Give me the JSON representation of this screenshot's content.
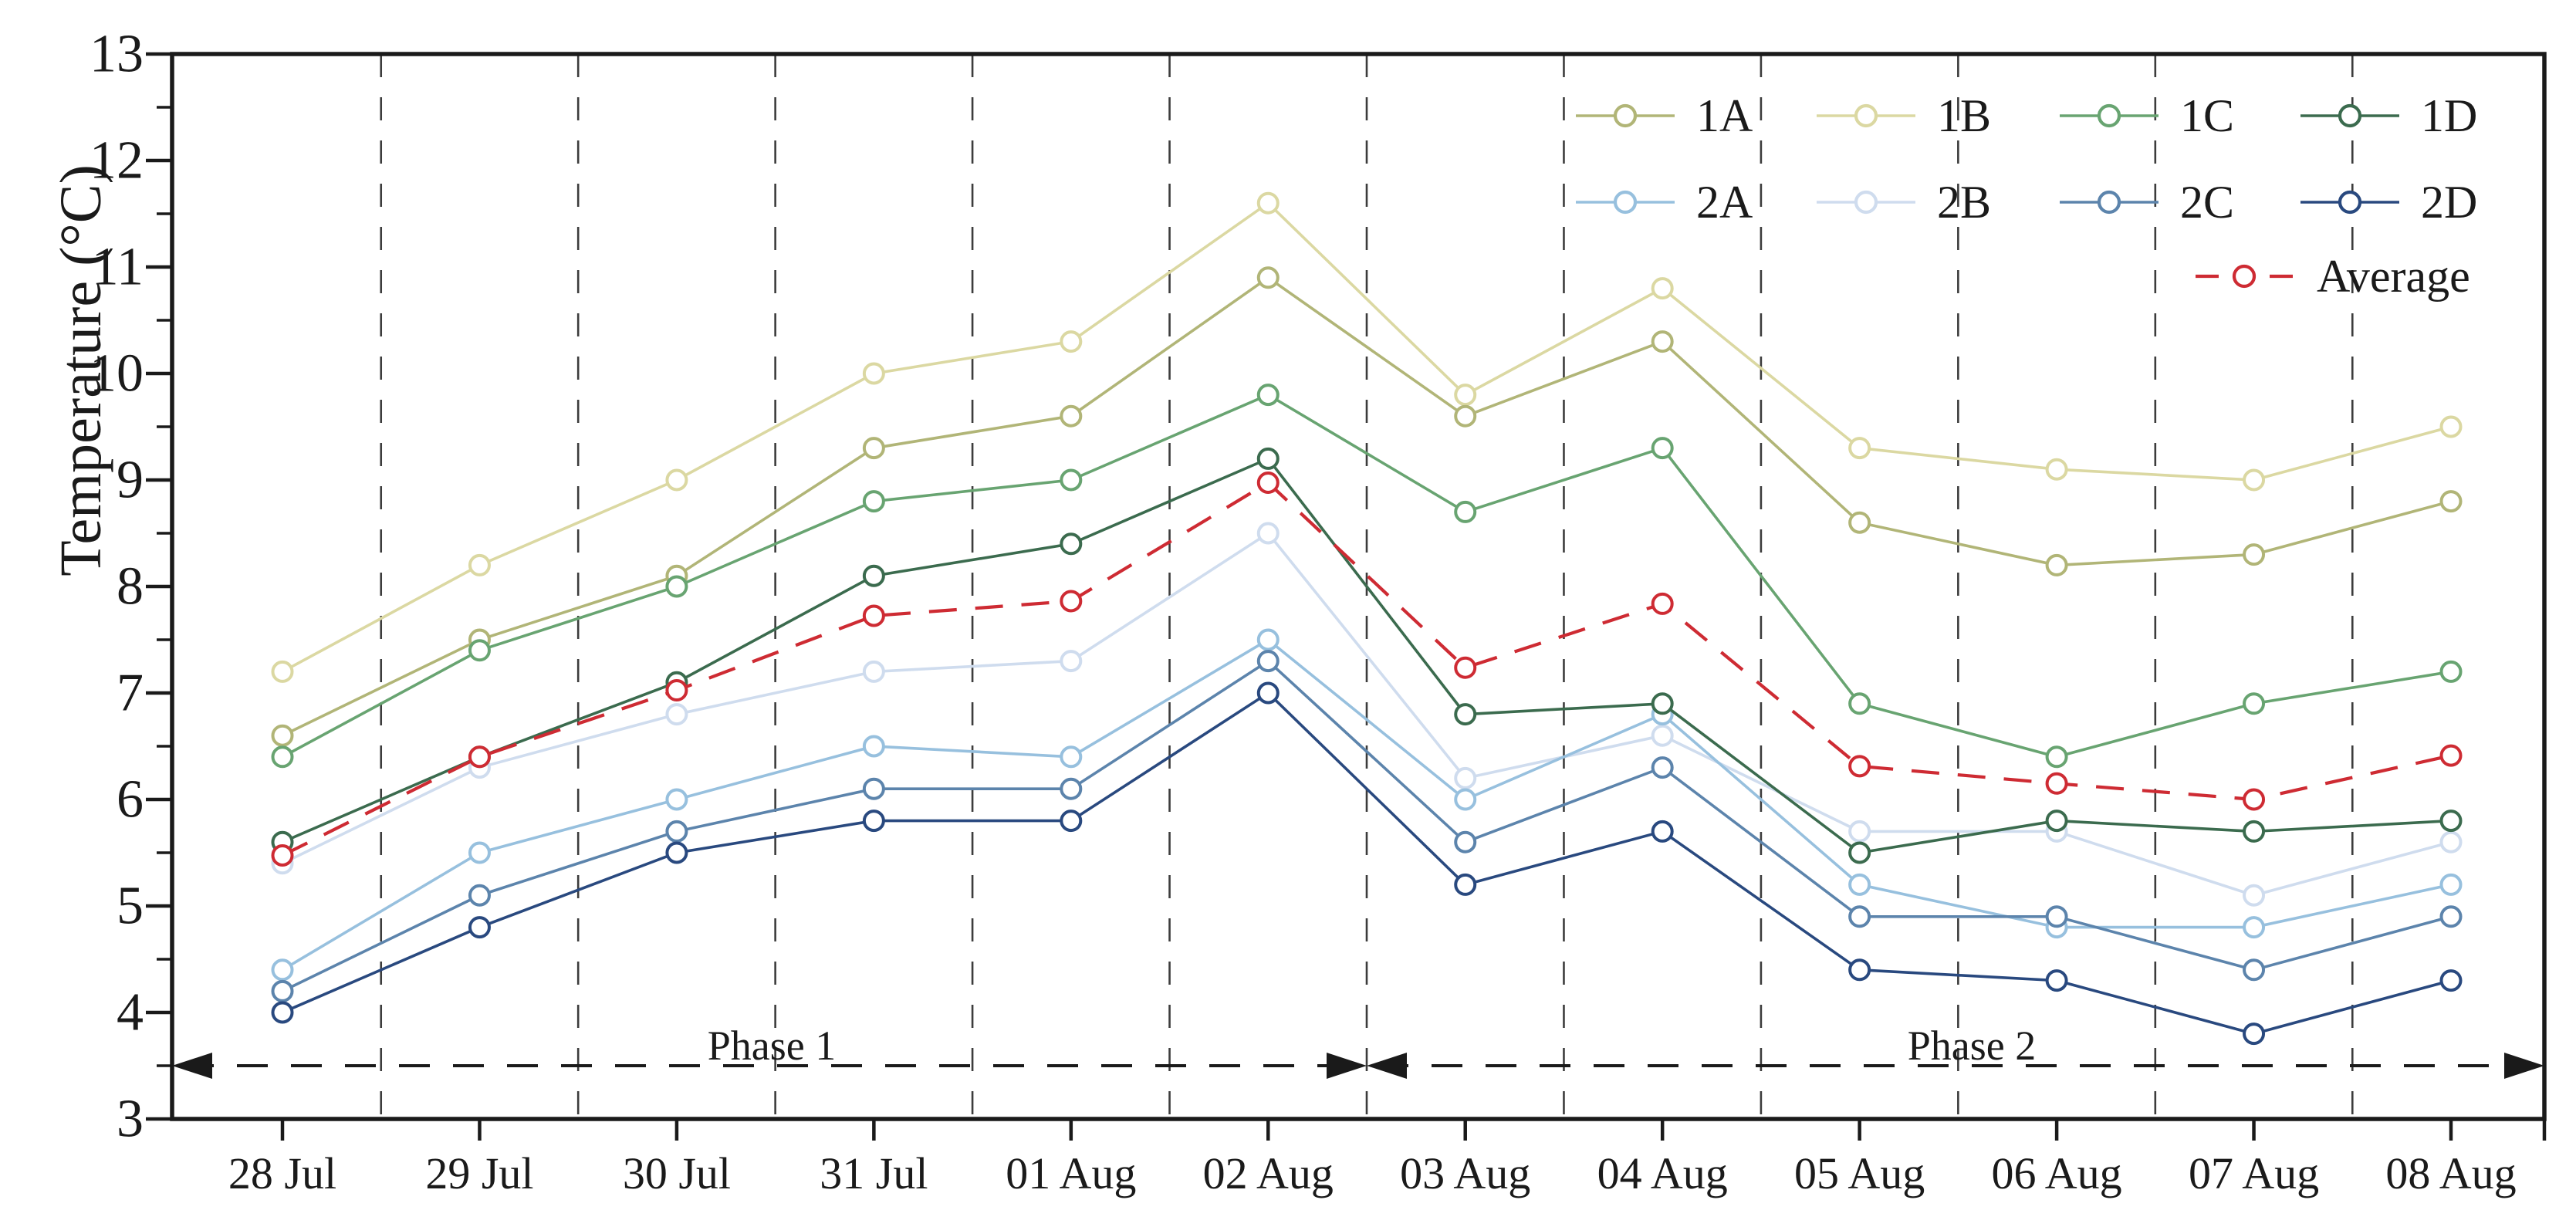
{
  "figure": {
    "background": "#ffffff",
    "axis_color": "#1a1a1a",
    "gridline_color": "#3c3c3c",
    "phase_arrow_color": "#1a1a1a"
  },
  "chart_data": {
    "type": "line",
    "title": "",
    "xlabel": "",
    "ylabel": "Temperature (°C)",
    "ylim": [
      3,
      13
    ],
    "yticks": [
      3,
      4,
      5,
      6,
      7,
      8,
      9,
      10,
      11,
      12,
      13
    ],
    "ytick_minor_step": 0.5,
    "grid": "vertical dashed lines between categories",
    "legend_position": "top-right inside plot",
    "categories": [
      "28 Jul",
      "29 Jul",
      "30 Jul",
      "31 Jul",
      "01 Aug",
      "02 Aug",
      "03 Aug",
      "04 Aug",
      "05 Aug",
      "06 Aug",
      "07 Aug",
      "08 Aug"
    ],
    "series": [
      {
        "name": "1A",
        "color": "#b1b577",
        "style": "solid",
        "marker": "open-circle",
        "values": [
          6.6,
          7.5,
          8.1,
          9.3,
          9.6,
          10.9,
          9.6,
          10.3,
          8.6,
          8.2,
          8.3,
          8.8
        ]
      },
      {
        "name": "1B",
        "color": "#dbd8a2",
        "style": "solid",
        "marker": "open-circle",
        "values": [
          7.2,
          8.2,
          9.0,
          10.0,
          10.3,
          11.6,
          9.8,
          10.8,
          9.3,
          9.1,
          9.0,
          9.5
        ]
      },
      {
        "name": "1C",
        "color": "#68a471",
        "style": "solid",
        "marker": "open-circle",
        "values": [
          6.4,
          7.4,
          8.0,
          8.8,
          9.0,
          9.8,
          8.7,
          9.3,
          6.9,
          6.4,
          6.9,
          7.2
        ]
      },
      {
        "name": "1D",
        "color": "#3b6b4e",
        "style": "solid",
        "marker": "open-circle",
        "values": [
          5.6,
          6.4,
          7.1,
          8.1,
          8.4,
          9.2,
          6.8,
          6.9,
          5.5,
          5.8,
          5.7,
          5.8
        ]
      },
      {
        "name": "2A",
        "color": "#97c0de",
        "style": "solid",
        "marker": "open-circle",
        "values": [
          4.4,
          5.5,
          6.0,
          6.5,
          6.4,
          7.5,
          6.0,
          6.8,
          5.2,
          4.8,
          4.8,
          5.2
        ]
      },
      {
        "name": "2B",
        "color": "#cfdcee",
        "style": "solid",
        "marker": "open-circle",
        "values": [
          5.4,
          6.3,
          6.8,
          7.2,
          7.3,
          8.5,
          6.2,
          6.6,
          5.7,
          5.7,
          5.1,
          5.6
        ]
      },
      {
        "name": "2C",
        "color": "#5c84ac",
        "style": "solid",
        "marker": "open-circle",
        "values": [
          4.2,
          5.1,
          5.7,
          6.1,
          6.1,
          7.3,
          5.6,
          6.3,
          4.9,
          4.9,
          4.4,
          4.9
        ]
      },
      {
        "name": "2D",
        "color": "#29497f",
        "style": "solid",
        "marker": "open-circle",
        "values": [
          4.0,
          4.8,
          5.5,
          5.8,
          5.8,
          7.0,
          5.2,
          5.7,
          4.4,
          4.3,
          3.8,
          4.3
        ]
      },
      {
        "name": "Average",
        "color": "#ce2b33",
        "style": "dashed",
        "marker": "open-circle",
        "values": [
          5.475,
          6.4,
          7.025,
          7.725,
          7.8625,
          8.975,
          7.2375,
          7.8375,
          6.3125,
          6.15,
          6.0,
          6.4125
        ]
      }
    ],
    "legend": {
      "rows": [
        [
          "1A",
          "1B",
          "1C",
          "1D"
        ],
        [
          "2A",
          "2B",
          "2C",
          "2D"
        ],
        [
          "Average"
        ]
      ]
    },
    "annotations": {
      "phase1": {
        "label": "Phase 1",
        "from_category": "28 Jul",
        "to_category": "02 Aug",
        "arrow_y": 3.5
      },
      "phase2": {
        "label": "Phase 2",
        "from_category": "03 Aug",
        "to_category": "08 Aug",
        "arrow_y": 3.5
      }
    }
  }
}
